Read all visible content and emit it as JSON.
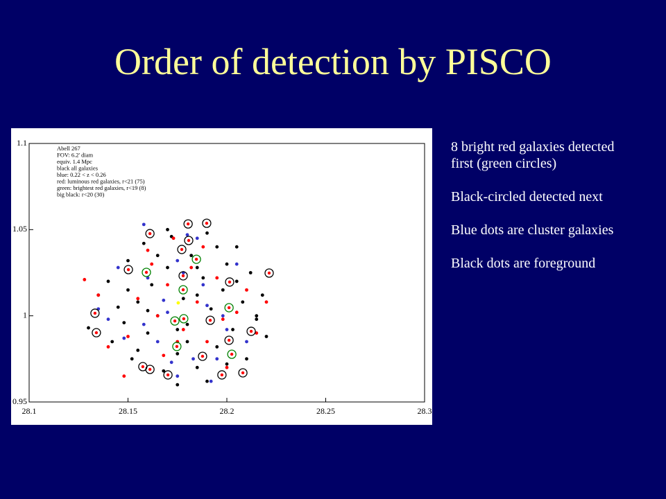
{
  "title": "Order of detection by PISCO",
  "notes": [
    "8 bright red galaxies detected first (green circles)",
    "Black-circled detected next",
    "Blue dots are cluster galaxies",
    "Black dots are foreground"
  ],
  "chart_data": {
    "type": "scatter",
    "annotations": [
      "Abell 267",
      "FOV: 6.2' diam",
      "equiv. 1.4 Mpc",
      "black all galaxies",
      "blue: 0.22 < z < 0.26",
      "red: luminous red galaxies, r<21 (75)",
      "green: brightest red galaxies, r<19 (8)",
      "big black: r<20 (30)"
    ],
    "xlim": [
      28.1,
      28.3
    ],
    "xticks": [
      28.1,
      28.15,
      28.2,
      28.25,
      28.3
    ],
    "ylim": [
      0.95,
      1.1
    ],
    "yticks": [
      0.95,
      1,
      1.05,
      1.1
    ],
    "series": [
      {
        "color": "#000000",
        "marker": "dot",
        "x": [
          28.13,
          28.135,
          28.14,
          28.142,
          28.148,
          28.15,
          28.152,
          28.155,
          28.158,
          28.16,
          28.162,
          28.165,
          28.168,
          28.17,
          28.172,
          28.175,
          28.178,
          28.18,
          28.182,
          28.185,
          28.188,
          28.19,
          28.192,
          28.195,
          28.198,
          28.2,
          28.203,
          28.205,
          28.208,
          28.21,
          28.212,
          28.215,
          28.218,
          28.22,
          28.145,
          28.155,
          28.165,
          28.175,
          28.185,
          28.195,
          28.205,
          28.215,
          28.17,
          28.18,
          28.19,
          28.16,
          28.2,
          28.15,
          28.185,
          28.175
        ],
        "y": [
          0.993,
          1.012,
          1.02,
          0.985,
          0.996,
          1.032,
          0.975,
          1.008,
          1.042,
          0.99,
          1.018,
          1.0,
          0.968,
          1.028,
          1.046,
          0.978,
          1.01,
          0.995,
          1.035,
          0.97,
          1.022,
          1.048,
          1.004,
          0.982,
          1.015,
          1.03,
          0.992,
          1.04,
          1.008,
          0.975,
          1.025,
          1.0,
          1.012,
          0.988,
          1.005,
          0.98,
          1.035,
          0.992,
          1.012,
          1.04,
          1.02,
          0.998,
          1.05,
          0.985,
          0.962,
          1.003,
          0.972,
          1.015,
          1.028,
          0.96
        ]
      },
      {
        "color": "#3333cc",
        "marker": "dot",
        "x": [
          28.135,
          28.14,
          28.145,
          28.148,
          28.158,
          28.16,
          28.165,
          28.168,
          28.17,
          28.172,
          28.175,
          28.178,
          28.18,
          28.183,
          28.188,
          28.19,
          28.192,
          28.195,
          28.198,
          28.2,
          28.205,
          28.21,
          28.158,
          28.185,
          28.175
        ],
        "y": [
          1.004,
          0.998,
          1.028,
          0.987,
          0.995,
          1.022,
          0.985,
          1.009,
          1.002,
          0.973,
          0.965,
          1.025,
          1.047,
          0.975,
          1.018,
          1.006,
          0.962,
          0.975,
          1.0,
          0.992,
          1.03,
          0.985,
          1.053,
          1.045,
          1.032
        ]
      },
      {
        "color": "#ff0000",
        "marker": "dot",
        "x": [
          28.128,
          28.135,
          28.14,
          28.15,
          28.155,
          28.162,
          28.165,
          28.168,
          28.17,
          28.173,
          28.178,
          28.182,
          28.185,
          28.19,
          28.195,
          28.2,
          28.205,
          28.21,
          28.215,
          28.22,
          28.148,
          28.16,
          28.188,
          28.198,
          28.175
        ],
        "y": [
          1.021,
          1.012,
          0.982,
          0.988,
          1.01,
          1.03,
          1.0,
          0.977,
          1.018,
          1.045,
          0.992,
          1.028,
          1.008,
          0.985,
          1.022,
          0.97,
          1.002,
          1.015,
          0.99,
          1.008,
          0.965,
          1.038,
          1.04,
          0.998,
          0.985
        ]
      },
      {
        "color": "#ffff00",
        "marker": "dot",
        "x": [
          28.1754
        ],
        "y": [
          1.0075
        ]
      },
      {
        "color": "#000000",
        "marker": "ring",
        "x": [
          28.1804,
          28.1611,
          28.1807,
          28.1898,
          28.1502,
          28.2214,
          28.2014,
          28.1779,
          28.1333,
          28.1916,
          28.2123,
          28.134,
          28.1575,
          28.1611,
          28.1702,
          28.1877,
          28.1975,
          28.2081,
          28.2011,
          28.1772
        ],
        "y": [
          1.0533,
          1.0477,
          1.0437,
          1.0537,
          1.0268,
          1.0248,
          1.0196,
          1.0232,
          1.0015,
          0.9974,
          0.991,
          0.9902,
          0.9705,
          0.9689,
          0.9657,
          0.9765,
          0.9657,
          0.9669,
          0.9858,
          1.0385
        ]
      },
      {
        "color": "#008000",
        "marker": "ring",
        "x": [
          28.1593,
          28.1846,
          28.1779,
          28.1737,
          28.1782,
          28.1747,
          28.2025,
          28.2011
        ],
        "y": [
          1.0252,
          1.0328,
          1.0151,
          0.997,
          0.9983,
          0.9822,
          0.9777,
          1.0047
        ]
      }
    ]
  }
}
